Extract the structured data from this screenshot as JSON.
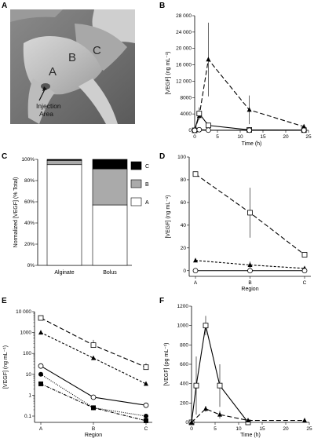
{
  "chart_data": [
    {
      "panel": "A",
      "type": "other",
      "region_labels": [
        "A",
        "B",
        "C"
      ],
      "annotation": "Injection Area"
    },
    {
      "panel": "B",
      "type": "line",
      "xlabel": "Time (h)",
      "ylabel": "[VEGF] (ng mL⁻¹)",
      "xlim": [
        0,
        25
      ],
      "ylim": [
        0,
        28000
      ],
      "xticks": [
        0,
        5,
        10,
        15,
        20,
        25
      ],
      "yticks": [
        0,
        4000,
        8000,
        12000,
        16000,
        20000,
        24000,
        28000
      ],
      "ytick_labels": [
        "0",
        "4000",
        "8000",
        "12 000",
        "16 000",
        "20 000",
        "24 000",
        "28 000"
      ],
      "series": [
        {
          "marker": "triangle",
          "dash": "long",
          "x": [
            0,
            1,
            3,
            12,
            24
          ],
          "y": [
            0,
            3500,
            17300,
            5000,
            900
          ],
          "err": [
            0,
            800,
            9000,
            3500,
            600
          ]
        },
        {
          "marker": "square",
          "dash": "solid",
          "x": [
            0,
            1,
            3,
            12,
            24
          ],
          "y": [
            0,
            4100,
            1200,
            100,
            50
          ],
          "err": [
            0,
            1500,
            400,
            0,
            0
          ]
        },
        {
          "marker": "circle",
          "dash": "solid",
          "x": [
            0,
            1,
            3,
            12,
            24
          ],
          "y": [
            0,
            150,
            50,
            20,
            20
          ],
          "err": [
            0,
            0,
            0,
            0,
            0
          ]
        }
      ]
    },
    {
      "panel": "C",
      "type": "bar",
      "stacked": true,
      "ylabel": "Normalized [VEGF] (% Total)",
      "categories": [
        "Alginate",
        "Bolus"
      ],
      "yticks": [
        0,
        20,
        40,
        60,
        80,
        100
      ],
      "ytick_labels": [
        "0%",
        "20%",
        "40%",
        "60%",
        "80%",
        "100%"
      ],
      "series": [
        {
          "name": "A",
          "color": "#ffffff",
          "values": [
            95,
            57
          ]
        },
        {
          "name": "B",
          "color": "#aaaaaa",
          "values": [
            4,
            34
          ]
        },
        {
          "name": "C",
          "color": "#000000",
          "values": [
            1,
            9
          ]
        }
      ],
      "legend_order": [
        "C",
        "B",
        "A"
      ],
      "legend": "right"
    },
    {
      "panel": "D",
      "type": "line",
      "xlabel": "Region",
      "ylabel": "[VEGF] (ng mL⁻¹)",
      "categories": [
        "A",
        "B",
        "C"
      ],
      "ylim": [
        -5,
        100
      ],
      "yticks": [
        0,
        20,
        40,
        60,
        80,
        100
      ],
      "series": [
        {
          "marker": "square",
          "dash": "long",
          "y": [
            85,
            51,
            14
          ],
          "err": [
            0,
            22,
            1
          ]
        },
        {
          "marker": "triangle",
          "dash": "short",
          "y": [
            9,
            5,
            2
          ],
          "err": [
            0,
            3,
            0
          ]
        },
        {
          "marker": "circle",
          "dash": "solid",
          "y": [
            0,
            0,
            0
          ],
          "err": [
            0,
            0,
            0
          ]
        }
      ]
    },
    {
      "panel": "E",
      "type": "line",
      "log": true,
      "xlabel": "Region",
      "ylabel": "[VEGF] (ng mL⁻¹)",
      "categories": [
        "A",
        "B",
        "C"
      ],
      "ylim": [
        0.05,
        10000
      ],
      "yticks": [
        0.1,
        1,
        10,
        100,
        1000,
        10000
      ],
      "ytick_labels": [
        "0.1",
        "1",
        "10",
        "100",
        "1000",
        "10 000"
      ],
      "series": [
        {
          "marker": "square",
          "dash": "long",
          "y": [
            5000,
            250,
            22
          ],
          "err_up": [
            0,
            200,
            12
          ]
        },
        {
          "marker": "triangle",
          "dash": "short",
          "y": [
            1000,
            60,
            3.5
          ],
          "err_up": [
            0,
            0,
            0
          ]
        },
        {
          "marker": "circle",
          "dash": "solid",
          "y": [
            25,
            0.8,
            0.33
          ],
          "err_up": [
            0,
            0,
            0
          ]
        },
        {
          "marker": "circle_filled",
          "dash": "dot",
          "y": [
            10,
            0.25,
            0.1
          ],
          "err_up": [
            0,
            0,
            0
          ]
        },
        {
          "marker": "square_filled",
          "dash": "dashdot",
          "y": [
            3.5,
            0.25,
            0.06
          ],
          "err_up": [
            0,
            0,
            0
          ]
        }
      ]
    },
    {
      "panel": "F",
      "type": "line",
      "xlabel": "Time (h)",
      "ylabel": "[VEGF] (pg mL⁻¹)",
      "xlim": [
        0,
        25
      ],
      "ylim": [
        0,
        1200
      ],
      "xticks": [
        0,
        5,
        10,
        15,
        20,
        25
      ],
      "yticks": [
        0,
        200,
        400,
        600,
        800,
        1000,
        1200
      ],
      "series": [
        {
          "marker": "square",
          "dash": "solid",
          "x": [
            0,
            1,
            3,
            6,
            12
          ],
          "y": [
            0,
            380,
            1000,
            380,
            0
          ],
          "err": [
            0,
            300,
            100,
            220,
            0
          ]
        },
        {
          "marker": "triangle",
          "dash": "long",
          "x": [
            0,
            3,
            6,
            12,
            24
          ],
          "y": [
            0,
            140,
            80,
            20,
            20
          ],
          "err": [
            0,
            30,
            40,
            0,
            0
          ]
        }
      ]
    }
  ]
}
